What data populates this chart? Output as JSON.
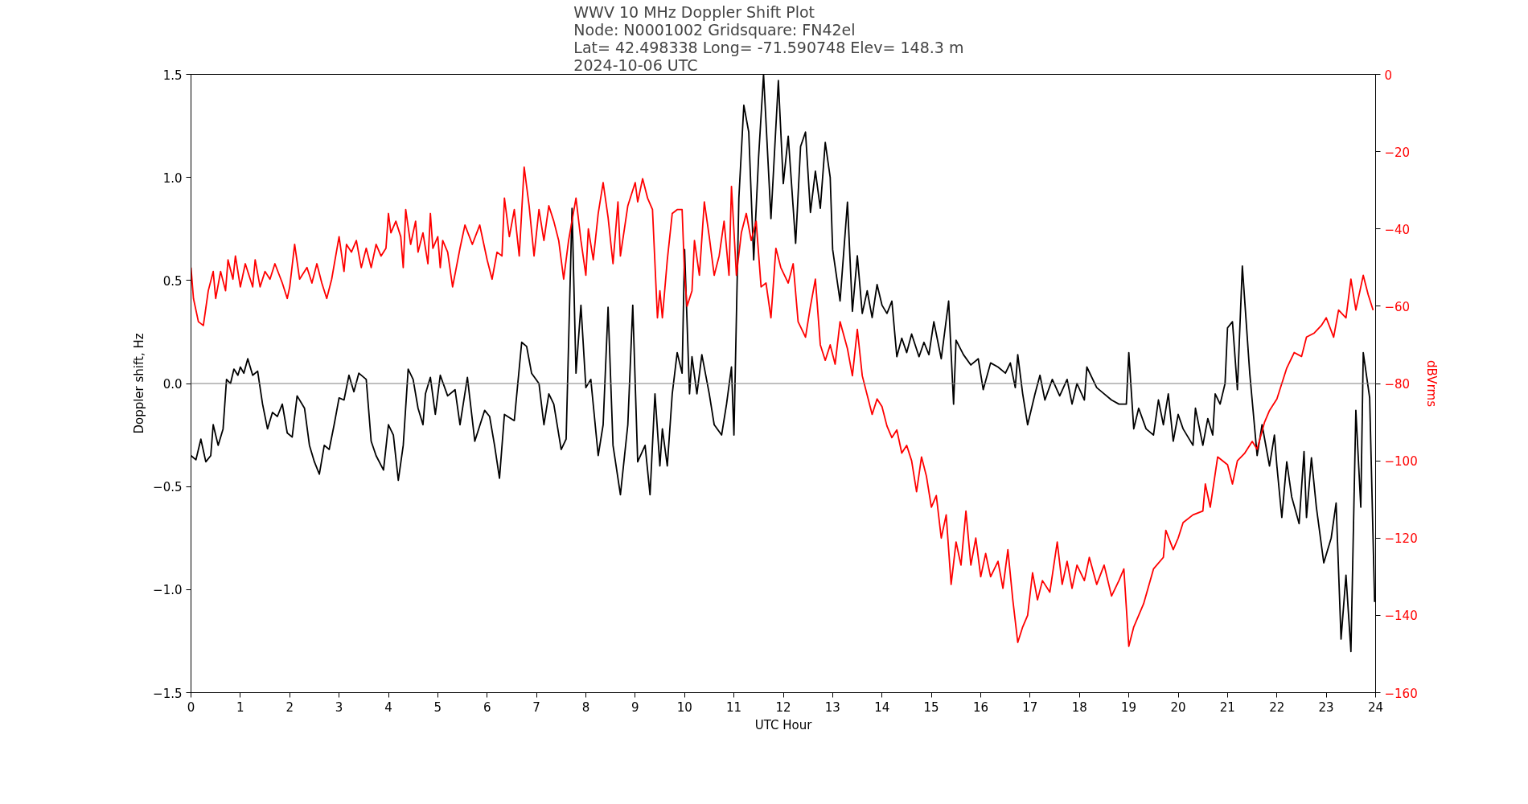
{
  "chart_data": {
    "type": "line",
    "title": "WWV 10 MHz Doppler Shift Plot",
    "subtitle": "Node:  N0001002     Gridsquare:  FN42el\nLat= 42.498338    Long= -71.590748    Elev= 148.3 m\n2024-10-06  UTC",
    "xlabel": "UTC Hour",
    "ylabel": "Doppler shift, Hz",
    "y2label": "dBVrms",
    "xlim": [
      0,
      24
    ],
    "xticks": [
      0,
      1,
      2,
      3,
      4,
      5,
      6,
      7,
      8,
      9,
      10,
      11,
      12,
      13,
      14,
      15,
      16,
      17,
      18,
      19,
      20,
      21,
      22,
      23,
      24
    ],
    "ylim": [
      -1.5,
      1.5
    ],
    "yticks": [
      {
        "value": -1.5,
        "label": "−1.5"
      },
      {
        "value": -1.0,
        "label": "−1.0"
      },
      {
        "value": -0.5,
        "label": "−0.5"
      },
      {
        "value": 0,
        "label": "0.0"
      },
      {
        "value": 0.5,
        "label": "0.5"
      },
      {
        "value": 1.0,
        "label": "1.0"
      },
      {
        "value": 1.5,
        "label": "1.5"
      }
    ],
    "y2lim": [
      -160,
      0
    ],
    "y2ticks": [
      {
        "value": -160,
        "label": "−160"
      },
      {
        "value": -140,
        "label": "−140"
      },
      {
        "value": -120,
        "label": "−120"
      },
      {
        "value": -100,
        "label": "−100"
      },
      {
        "value": -80,
        "label": "−80"
      },
      {
        "value": -60,
        "label": "−60"
      },
      {
        "value": -40,
        "label": "−40"
      },
      {
        "value": -20,
        "label": "−20"
      },
      0
    ],
    "grid": false,
    "line_style": "solid",
    "ref_lines": [
      {
        "axis": "y",
        "value": 0,
        "color": "#808080"
      }
    ],
    "series": [
      {
        "color": "#000000",
        "x": [
          0,
          0.1,
          0.2,
          0.3,
          0.4,
          0.45,
          0.55,
          0.65,
          0.72,
          0.8,
          0.87,
          0.95,
          1.0,
          1.07,
          1.15,
          1.25,
          1.35,
          1.45,
          1.55,
          1.65,
          1.75,
          1.85,
          1.95,
          2.05,
          2.15,
          2.3,
          2.4,
          2.5,
          2.6,
          2.7,
          2.8,
          2.9,
          3.0,
          3.1,
          3.2,
          3.3,
          3.4,
          3.55,
          3.65,
          3.75,
          3.9,
          4.0,
          4.1,
          4.2,
          4.3,
          4.4,
          4.5,
          4.6,
          4.7,
          4.75,
          4.85,
          4.95,
          5.05,
          5.2,
          5.35,
          5.45,
          5.6,
          5.75,
          5.95,
          6.05,
          6.15,
          6.25,
          6.35,
          6.55,
          6.7,
          6.8,
          6.9,
          7.05,
          7.15,
          7.25,
          7.35,
          7.5,
          7.6,
          7.72,
          7.8,
          7.9,
          8.0,
          8.1,
          8.25,
          8.35,
          8.45,
          8.55,
          8.7,
          8.85,
          8.95,
          9.05,
          9.2,
          9.3,
          9.4,
          9.5,
          9.55,
          9.65,
          9.75,
          9.85,
          9.95,
          10.0,
          10.1,
          10.15,
          10.25,
          10.35,
          10.5,
          10.6,
          10.75,
          10.85,
          10.95,
          11.0,
          11.1,
          11.2,
          11.3,
          11.4,
          11.5,
          11.6,
          11.75,
          11.9,
          12.0,
          12.1,
          12.25,
          12.35,
          12.45,
          12.55,
          12.65,
          12.75,
          12.85,
          12.95,
          13.0,
          13.15,
          13.3,
          13.4,
          13.5,
          13.6,
          13.7,
          13.8,
          13.9,
          14.0,
          14.1,
          14.2,
          14.3,
          14.4,
          14.5,
          14.6,
          14.75,
          14.85,
          14.95,
          15.05,
          15.2,
          15.35,
          15.45,
          15.5,
          15.65,
          15.8,
          15.95,
          16.05,
          16.2,
          16.35,
          16.5,
          16.6,
          16.7,
          16.75,
          16.85,
          16.95,
          17.1,
          17.2,
          17.3,
          17.45,
          17.6,
          17.75,
          17.85,
          17.95,
          18.1,
          18.15,
          18.35,
          18.5,
          18.65,
          18.8,
          18.95,
          19.0,
          19.1,
          19.2,
          19.35,
          19.5,
          19.6,
          19.7,
          19.8,
          19.9,
          20.0,
          20.1,
          20.3,
          20.35,
          20.5,
          20.6,
          20.7,
          20.75,
          20.85,
          20.95,
          21.0,
          21.1,
          21.2,
          21.3,
          21.45,
          21.6,
          21.7,
          21.85,
          21.95,
          22.0,
          22.1,
          22.2,
          22.3,
          22.45,
          22.55,
          22.6,
          22.7,
          22.8,
          22.95,
          23.1,
          23.2,
          23.3,
          23.4,
          23.5,
          23.6,
          23.7,
          23.75,
          23.88,
          23.98
        ],
        "values": [
          -0.35,
          -0.37,
          -0.27,
          -0.38,
          -0.35,
          -0.2,
          -0.3,
          -0.22,
          0.02,
          0.0,
          0.07,
          0.04,
          0.08,
          0.05,
          0.12,
          0.04,
          0.06,
          -0.1,
          -0.22,
          -0.14,
          -0.16,
          -0.1,
          -0.24,
          -0.26,
          -0.06,
          -0.12,
          -0.3,
          -0.38,
          -0.44,
          -0.3,
          -0.32,
          -0.2,
          -0.07,
          -0.08,
          0.04,
          -0.04,
          0.05,
          0.02,
          -0.28,
          -0.35,
          -0.42,
          -0.2,
          -0.25,
          -0.47,
          -0.3,
          0.07,
          0.02,
          -0.12,
          -0.2,
          -0.05,
          0.03,
          -0.15,
          0.04,
          -0.06,
          -0.03,
          -0.2,
          0.03,
          -0.28,
          -0.13,
          -0.16,
          -0.3,
          -0.46,
          -0.15,
          -0.18,
          0.2,
          0.18,
          0.05,
          0.0,
          -0.2,
          -0.05,
          -0.1,
          -0.32,
          -0.27,
          0.85,
          0.05,
          0.38,
          -0.02,
          0.02,
          -0.35,
          -0.2,
          0.37,
          -0.3,
          -0.54,
          -0.2,
          0.38,
          -0.38,
          -0.3,
          -0.54,
          -0.05,
          -0.4,
          -0.22,
          -0.4,
          -0.05,
          0.15,
          0.05,
          0.65,
          -0.05,
          0.13,
          -0.05,
          0.14,
          -0.05,
          -0.2,
          -0.25,
          -0.1,
          0.08,
          -0.25,
          0.9,
          1.35,
          1.22,
          0.6,
          1.1,
          1.5,
          0.8,
          1.47,
          0.97,
          1.2,
          0.68,
          1.15,
          1.22,
          0.83,
          1.03,
          0.85,
          1.17,
          1.0,
          0.65,
          0.4,
          0.88,
          0.35,
          0.62,
          0.34,
          0.45,
          0.32,
          0.48,
          0.38,
          0.34,
          0.4,
          0.13,
          0.22,
          0.15,
          0.24,
          0.13,
          0.2,
          0.14,
          0.3,
          0.12,
          0.4,
          -0.1,
          0.21,
          0.14,
          0.09,
          0.12,
          -0.03,
          0.1,
          0.08,
          0.05,
          0.1,
          -0.02,
          0.14,
          -0.05,
          -0.2,
          -0.05,
          0.04,
          -0.08,
          0.02,
          -0.06,
          0.02,
          -0.1,
          0.0,
          -0.08,
          0.08,
          -0.02,
          -0.05,
          -0.08,
          -0.1,
          -0.1,
          0.15,
          -0.22,
          -0.12,
          -0.22,
          -0.25,
          -0.08,
          -0.2,
          -0.05,
          -0.28,
          -0.15,
          -0.22,
          -0.3,
          -0.12,
          -0.3,
          -0.17,
          -0.25,
          -0.05,
          -0.1,
          0.0,
          0.27,
          0.3,
          -0.03,
          0.57,
          0.05,
          -0.35,
          -0.2,
          -0.4,
          -0.25,
          -0.4,
          -0.65,
          -0.38,
          -0.55,
          -0.68,
          -0.33,
          -0.65,
          -0.36,
          -0.6,
          -0.87,
          -0.75,
          -0.58,
          -1.24,
          -0.93,
          -1.3,
          -0.13,
          -0.6,
          0.15,
          -0.07,
          -1.06
        ]
      },
      {
        "color": "#ff0000",
        "axis": "y2",
        "x": [
          0,
          0.05,
          0.15,
          0.25,
          0.35,
          0.45,
          0.5,
          0.6,
          0.7,
          0.75,
          0.85,
          0.9,
          1.0,
          1.1,
          1.25,
          1.3,
          1.4,
          1.5,
          1.6,
          1.7,
          1.85,
          1.95,
          2.0,
          2.1,
          2.2,
          2.35,
          2.45,
          2.55,
          2.65,
          2.75,
          2.85,
          3.0,
          3.1,
          3.15,
          3.25,
          3.35,
          3.45,
          3.55,
          3.65,
          3.75,
          3.85,
          3.95,
          4.0,
          4.05,
          4.15,
          4.25,
          4.3,
          4.35,
          4.45,
          4.55,
          4.6,
          4.7,
          4.8,
          4.85,
          4.9,
          5.0,
          5.05,
          5.1,
          5.2,
          5.3,
          5.45,
          5.55,
          5.7,
          5.85,
          6.0,
          6.1,
          6.2,
          6.3,
          6.35,
          6.45,
          6.55,
          6.65,
          6.75,
          6.85,
          6.95,
          7.05,
          7.15,
          7.25,
          7.35,
          7.45,
          7.55,
          7.65,
          7.8,
          7.9,
          8.0,
          8.05,
          8.15,
          8.25,
          8.35,
          8.45,
          8.55,
          8.65,
          8.7,
          8.85,
          9.0,
          9.05,
          9.15,
          9.25,
          9.35,
          9.45,
          9.5,
          9.55,
          9.65,
          9.75,
          9.85,
          9.95,
          10.0,
          10.05,
          10.15,
          10.2,
          10.3,
          10.4,
          10.5,
          10.6,
          10.7,
          10.8,
          10.9,
          10.95,
          11.05,
          11.15,
          11.25,
          11.35,
          11.45,
          11.55,
          11.65,
          11.75,
          11.85,
          11.95,
          12.1,
          12.2,
          12.3,
          12.45,
          12.55,
          12.65,
          12.75,
          12.85,
          12.95,
          13.05,
          13.15,
          13.3,
          13.4,
          13.5,
          13.6,
          13.7,
          13.8,
          13.9,
          14.0,
          14.1,
          14.2,
          14.3,
          14.4,
          14.5,
          14.6,
          14.7,
          14.8,
          14.9,
          15.0,
          15.1,
          15.2,
          15.3,
          15.4,
          15.5,
          15.6,
          15.7,
          15.8,
          15.9,
          16.0,
          16.1,
          16.2,
          16.35,
          16.45,
          16.55,
          16.65,
          16.75,
          16.85,
          16.95,
          17.05,
          17.15,
          17.25,
          17.4,
          17.55,
          17.65,
          17.75,
          17.85,
          17.95,
          18.1,
          18.2,
          18.35,
          18.5,
          18.65,
          18.8,
          18.9,
          19.0,
          19.1,
          19.3,
          19.5,
          19.7,
          19.75,
          19.9,
          20.0,
          20.1,
          20.3,
          20.5,
          20.55,
          20.65,
          20.8,
          21.0,
          21.1,
          21.2,
          21.35,
          21.5,
          21.6,
          21.75,
          21.85,
          22.0,
          22.1,
          22.2,
          22.35,
          22.5,
          22.6,
          22.75,
          22.9,
          23.0,
          23.15,
          23.25,
          23.4,
          23.5,
          23.6,
          23.75,
          23.85,
          23.95
        ],
        "values": [
          -50,
          -58,
          -64,
          -65,
          -56,
          -51,
          -58,
          -51,
          -56,
          -48,
          -53,
          -47,
          -55,
          -49,
          -55,
          -48,
          -55,
          -51,
          -53,
          -49,
          -54,
          -58,
          -55,
          -44,
          -53,
          -50,
          -54,
          -49,
          -54,
          -58,
          -53,
          -42,
          -51,
          -44,
          -46,
          -43,
          -50,
          -45,
          -50,
          -44,
          -47,
          -45,
          -36,
          -41,
          -38,
          -42,
          -50,
          -35,
          -44,
          -38,
          -46,
          -41,
          -49,
          -36,
          -45,
          -42,
          -50,
          -43,
          -46,
          -55,
          -45,
          -39,
          -44,
          -39,
          -48,
          -53,
          -46,
          -47,
          -32,
          -42,
          -35,
          -47,
          -24,
          -34,
          -47,
          -35,
          -43,
          -34,
          -38,
          -43,
          -53,
          -43,
          -32,
          -43,
          -52,
          -40,
          -48,
          -36,
          -28,
          -37,
          -49,
          -33,
          -47,
          -34,
          -28,
          -33,
          -27,
          -32,
          -35,
          -63,
          -56,
          -63,
          -48,
          -36,
          -35,
          -35,
          -52,
          -60,
          -56,
          -43,
          -52,
          -33,
          -42,
          -52,
          -47,
          -38,
          -52,
          -29,
          -52,
          -41,
          -36,
          -43,
          -38,
          -55,
          -54,
          -63,
          -45,
          -50,
          -54,
          -49,
          -64,
          -68,
          -60,
          -53,
          -70,
          -74,
          -70,
          -75,
          -64,
          -71,
          -78,
          -66,
          -78,
          -83,
          -88,
          -84,
          -86,
          -91,
          -94,
          -92,
          -98,
          -96,
          -100,
          -108,
          -99,
          -104,
          -112,
          -109,
          -120,
          -114,
          -132,
          -121,
          -127,
          -113,
          -127,
          -120,
          -130,
          -124,
          -130,
          -126,
          -133,
          -123,
          -136,
          -147,
          -143,
          -140,
          -129,
          -136,
          -131,
          -134,
          -121,
          -132,
          -126,
          -133,
          -127,
          -131,
          -125,
          -132,
          -127,
          -135,
          -131,
          -128,
          -148,
          -143,
          -137,
          -128,
          -125,
          -118,
          -123,
          -120,
          -116,
          -114,
          -113,
          -106,
          -112,
          -99,
          -101,
          -106,
          -100,
          -98,
          -95,
          -97,
          -90,
          -87,
          -84,
          -80,
          -76,
          -72,
          -73,
          -68,
          -67,
          -65,
          -63,
          -68,
          -61,
          -63,
          -53,
          -61,
          -52,
          -57,
          -61
        ]
      }
    ]
  }
}
